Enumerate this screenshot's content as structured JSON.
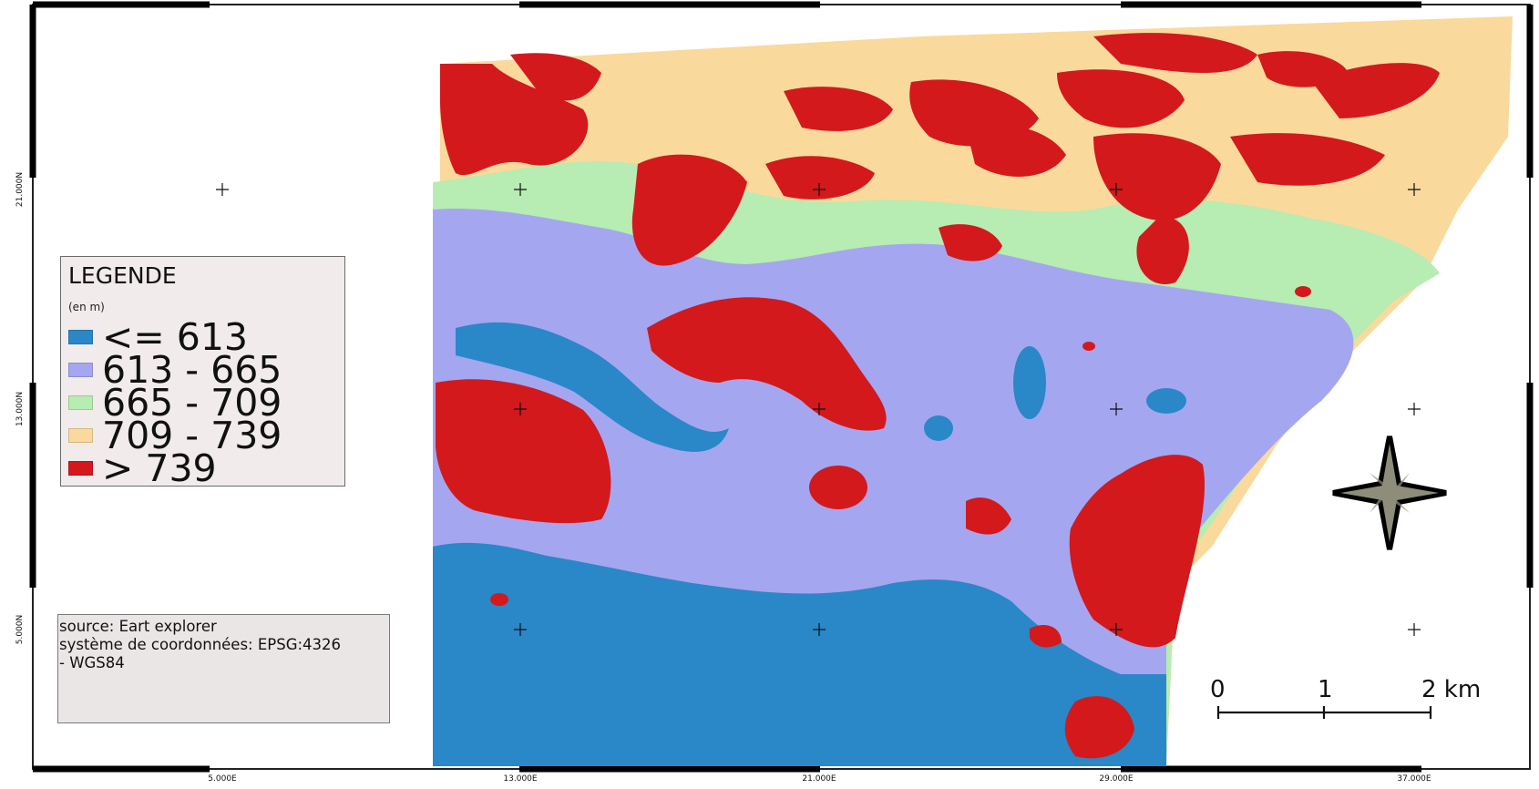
{
  "legend": {
    "title": "LEGENDE",
    "unit": "(en m)",
    "classes": [
      {
        "label": "<= 613",
        "color": "#2a87c8"
      },
      {
        "label": "613 - 665",
        "color": "#a5a6f0"
      },
      {
        "label": "665 - 709",
        "color": "#b7ecb2"
      },
      {
        "label": "709 - 739",
        "color": "#fad99c"
      },
      {
        "label": "> 739",
        "color": "#d3191c"
      }
    ]
  },
  "source": {
    "line1": "source: Eart explorer",
    "line2": "système de coordonnées: EPSG:4326",
    "line3": "- WGS84"
  },
  "scale_bar": {
    "label0": "0",
    "label1": "1",
    "label2": "2 km"
  },
  "axes": {
    "x_ticks": [
      "5.000E",
      "13.000E",
      "21.000E",
      "29.000E",
      "37.000E"
    ],
    "y_ticks": [
      "21.000N",
      "13.000N",
      "5.000N"
    ]
  },
  "north_arrow": {
    "icon": "compass-star-icon",
    "fill": "#8d8d7a"
  }
}
